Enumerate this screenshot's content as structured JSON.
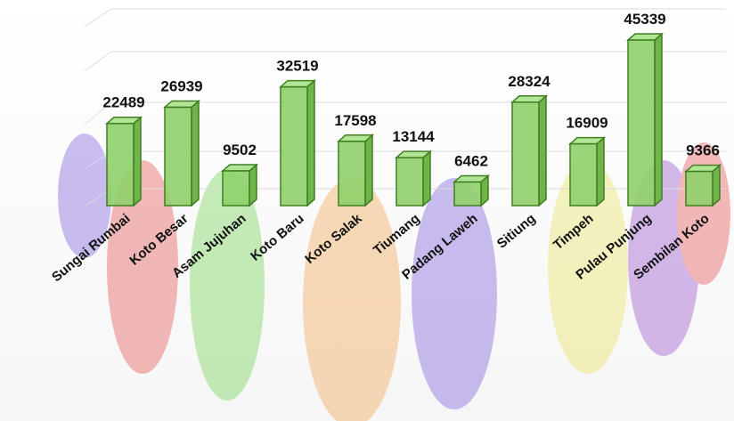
{
  "chart_data": {
    "type": "bar3d",
    "categories": [
      "Sungai Rumbai",
      "Koto Besar",
      "Asam Jujuhan",
      "Koto Baru",
      "Koto Salak",
      "Tiumang",
      "Padang Laweh",
      "Sitiung",
      "Timpeh",
      "Pulau Punjung",
      "Sembilan Koto"
    ],
    "values": [
      22489,
      26939,
      9502,
      32519,
      17598,
      13144,
      6462,
      28324,
      16909,
      45339,
      9366
    ],
    "color": "#8fd16a"
  }
}
